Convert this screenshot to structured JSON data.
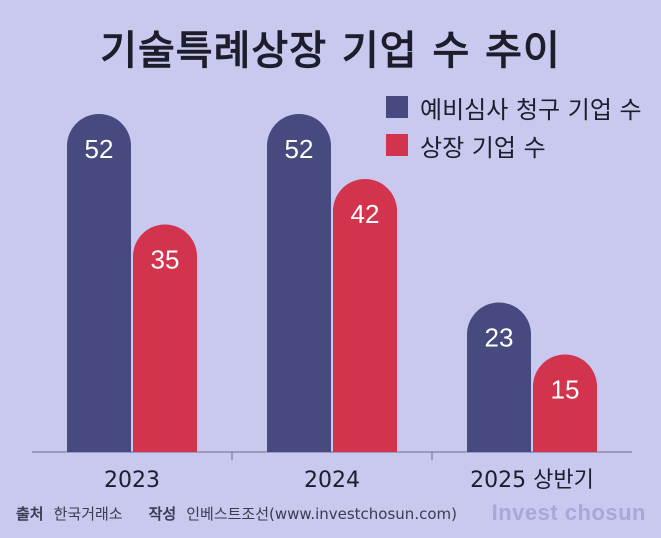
{
  "chart_data": {
    "type": "bar",
    "title": "기술특례상장 기업 수 추이",
    "categories": [
      "2023",
      "2024",
      "2025 상반기"
    ],
    "series": [
      {
        "name": "예비심사 청구 기업 수",
        "values": [
          52,
          52,
          23
        ],
        "color": "#474a7e"
      },
      {
        "name": "상장 기업 수",
        "values": [
          35,
          42,
          15
        ],
        "color": "#d3344d"
      }
    ],
    "ylim": [
      0,
      60
    ],
    "grid": false,
    "legend_position": "top-right",
    "show_data_labels": true
  },
  "footer": {
    "source_key": "출처",
    "source_value": "한국거래소",
    "author_key": "작성",
    "author_value": "인베스트조선(www.investchosun.com)",
    "brand": "Invest chosun"
  }
}
